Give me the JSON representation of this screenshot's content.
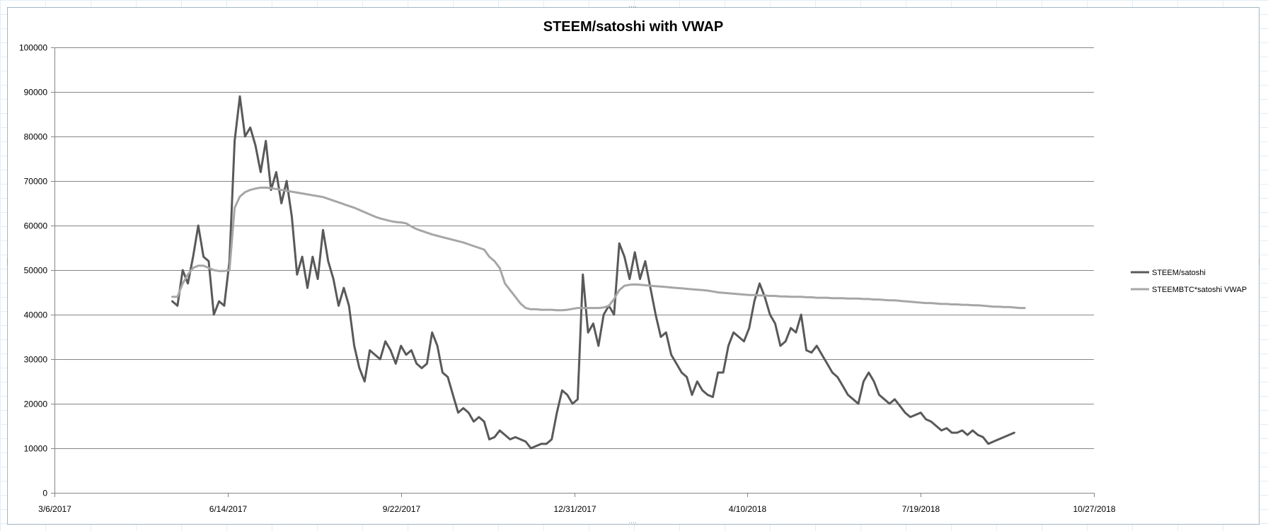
{
  "chart_data": {
    "type": "line",
    "title": "STEEM/satoshi with VWAP",
    "xlabel": "",
    "ylabel": "",
    "ylim": [
      0,
      100000
    ],
    "yticks": [
      0,
      10000,
      20000,
      30000,
      40000,
      50000,
      60000,
      70000,
      80000,
      90000,
      100000
    ],
    "xlim": [
      "3/6/2017",
      "10/27/2018"
    ],
    "xtick_labels": [
      "3/6/2017",
      "6/14/2017",
      "9/22/2017",
      "12/31/2017",
      "4/10/2018",
      "7/19/2018",
      "10/27/2018"
    ],
    "grid": true,
    "legend_position": "right",
    "x_dates": [
      "2017-05-13",
      "2017-05-16",
      "2017-05-19",
      "2017-05-22",
      "2017-05-25",
      "2017-05-28",
      "2017-05-31",
      "2017-06-03",
      "2017-06-06",
      "2017-06-09",
      "2017-06-12",
      "2017-06-15",
      "2017-06-18",
      "2017-06-21",
      "2017-06-24",
      "2017-06-27",
      "2017-06-30",
      "2017-07-03",
      "2017-07-06",
      "2017-07-09",
      "2017-07-12",
      "2017-07-15",
      "2017-07-18",
      "2017-07-21",
      "2017-07-24",
      "2017-07-27",
      "2017-07-30",
      "2017-08-02",
      "2017-08-05",
      "2017-08-08",
      "2017-08-11",
      "2017-08-14",
      "2017-08-17",
      "2017-08-20",
      "2017-08-23",
      "2017-08-26",
      "2017-08-29",
      "2017-09-01",
      "2017-09-04",
      "2017-09-07",
      "2017-09-10",
      "2017-09-13",
      "2017-09-16",
      "2017-09-19",
      "2017-09-22",
      "2017-09-25",
      "2017-09-28",
      "2017-10-01",
      "2017-10-04",
      "2017-10-07",
      "2017-10-10",
      "2017-10-13",
      "2017-10-16",
      "2017-10-19",
      "2017-10-22",
      "2017-10-25",
      "2017-10-28",
      "2017-10-31",
      "2017-11-03",
      "2017-11-06",
      "2017-11-09",
      "2017-11-12",
      "2017-11-15",
      "2017-11-18",
      "2017-11-21",
      "2017-11-24",
      "2017-11-27",
      "2017-11-30",
      "2017-12-03",
      "2017-12-06",
      "2017-12-09",
      "2017-12-12",
      "2017-12-15",
      "2017-12-18",
      "2017-12-21",
      "2017-12-24",
      "2017-12-27",
      "2017-12-30",
      "2018-01-02",
      "2018-01-05",
      "2018-01-08",
      "2018-01-11",
      "2018-01-14",
      "2018-01-17",
      "2018-01-20",
      "2018-01-23",
      "2018-01-26",
      "2018-01-29",
      "2018-02-01",
      "2018-02-04",
      "2018-02-07",
      "2018-02-10",
      "2018-02-13",
      "2018-02-16",
      "2018-02-19",
      "2018-02-22",
      "2018-02-25",
      "2018-02-28",
      "2018-03-03",
      "2018-03-06",
      "2018-03-09",
      "2018-03-12",
      "2018-03-15",
      "2018-03-18",
      "2018-03-21",
      "2018-03-24",
      "2018-03-27",
      "2018-03-30",
      "2018-04-02",
      "2018-04-05",
      "2018-04-08",
      "2018-04-11",
      "2018-04-14",
      "2018-04-17",
      "2018-04-20",
      "2018-04-23",
      "2018-04-26",
      "2018-04-29",
      "2018-05-02",
      "2018-05-05",
      "2018-05-08",
      "2018-05-11",
      "2018-05-14",
      "2018-05-17",
      "2018-05-20",
      "2018-05-23",
      "2018-05-26",
      "2018-05-29",
      "2018-06-01",
      "2018-06-04",
      "2018-06-07",
      "2018-06-10",
      "2018-06-13",
      "2018-06-16",
      "2018-06-19",
      "2018-06-22",
      "2018-06-25",
      "2018-06-28",
      "2018-07-01",
      "2018-07-04",
      "2018-07-07",
      "2018-07-10",
      "2018-07-13",
      "2018-07-16",
      "2018-07-19",
      "2018-07-22",
      "2018-07-25",
      "2018-07-28",
      "2018-07-31",
      "2018-08-03",
      "2018-08-06",
      "2018-08-09",
      "2018-08-12",
      "2018-08-15",
      "2018-08-18",
      "2018-08-21",
      "2018-08-24",
      "2018-08-27",
      "2018-08-30",
      "2018-09-02",
      "2018-09-05",
      "2018-09-08",
      "2018-09-11",
      "2018-09-14",
      "2018-09-17",
      "2018-09-20",
      "2018-09-23",
      "2018-09-26",
      "2018-09-29",
      "2018-10-02"
    ],
    "series": [
      {
        "name": "STEEM/satoshi",
        "color": "#595959",
        "values": [
          43000,
          42000,
          50000,
          47000,
          53000,
          60000,
          53000,
          52000,
          40000,
          43000,
          42000,
          52000,
          79000,
          89000,
          80000,
          82000,
          78000,
          72000,
          79000,
          68000,
          72000,
          65000,
          70000,
          62000,
          49000,
          53000,
          46000,
          53000,
          48000,
          59000,
          52000,
          48000,
          42000,
          46000,
          42000,
          33000,
          28000,
          25000,
          32000,
          31000,
          30000,
          34000,
          32000,
          29000,
          33000,
          31000,
          32000,
          29000,
          28000,
          29000,
          36000,
          33000,
          27000,
          26000,
          22000,
          18000,
          19000,
          18000,
          16000,
          17000,
          16000,
          12000,
          12500,
          14000,
          13000,
          12000,
          12500,
          12000,
          11500,
          10000,
          10500,
          11000,
          11000,
          12000,
          18000,
          23000,
          22000,
          20000,
          21000,
          49000,
          36000,
          38000,
          33000,
          40000,
          42000,
          40000,
          56000,
          53000,
          48000,
          54000,
          48000,
          52000,
          46000,
          40000,
          35000,
          36000,
          31000,
          29000,
          27000,
          26000,
          22000,
          25000,
          23000,
          22000,
          21500,
          27000,
          27000,
          33000,
          36000,
          35000,
          34000,
          37000,
          43000,
          47000,
          44000,
          40000,
          38000,
          33000,
          34000,
          37000,
          36000,
          40000,
          32000,
          31500,
          33000,
          31000,
          29000,
          27000,
          26000,
          24000,
          22000,
          21000,
          20000,
          25000,
          27000,
          25000,
          22000,
          21000,
          20000,
          21000,
          19500,
          18000,
          17000,
          17500,
          18000,
          16500,
          16000,
          15000,
          14000,
          14500,
          13500,
          13500,
          14000,
          13000,
          14000,
          13000,
          12500,
          11000,
          11500,
          12000,
          12500,
          13000,
          13500
        ]
      },
      {
        "name": "STEEMBTC*satoshi  VWAP",
        "color": "#a6a6a6",
        "values": [
          44000,
          44000,
          47000,
          49000,
          50500,
          51000,
          51000,
          50500,
          50000,
          49800,
          49800,
          50000,
          64000,
          66500,
          67500,
          68000,
          68300,
          68500,
          68500,
          68400,
          68200,
          68000,
          67800,
          67600,
          67400,
          67200,
          67000,
          66800,
          66600,
          66400,
          66000,
          65600,
          65200,
          64800,
          64400,
          64000,
          63500,
          63000,
          62500,
          62000,
          61600,
          61300,
          61000,
          60800,
          60700,
          60500,
          59800,
          59200,
          58800,
          58400,
          58000,
          57700,
          57400,
          57100,
          56800,
          56500,
          56200,
          55800,
          55400,
          55000,
          54600,
          53000,
          52000,
          50500,
          47000,
          45500,
          44000,
          42500,
          41500,
          41200,
          41200,
          41100,
          41100,
          41100,
          41000,
          41000,
          41100,
          41300,
          41500,
          41500,
          41500,
          41500,
          41500,
          41600,
          42000,
          43500,
          45500,
          46500,
          46700,
          46800,
          46700,
          46600,
          46500,
          46400,
          46300,
          46200,
          46100,
          46000,
          45900,
          45800,
          45700,
          45600,
          45500,
          45400,
          45200,
          45000,
          44900,
          44800,
          44700,
          44600,
          44500,
          44400,
          44400,
          44300,
          44300,
          44200,
          44200,
          44100,
          44100,
          44000,
          44000,
          44000,
          43900,
          43900,
          43800,
          43800,
          43800,
          43700,
          43700,
          43700,
          43600,
          43600,
          43600,
          43500,
          43500,
          43400,
          43400,
          43300,
          43200,
          43200,
          43100,
          43000,
          42900,
          42800,
          42700,
          42600,
          42600,
          42500,
          42400,
          42400,
          42300,
          42300,
          42200,
          42200,
          42100,
          42100,
          42000,
          41900,
          41800,
          41800,
          41700,
          41700,
          41600,
          41500,
          41500
        ]
      }
    ]
  }
}
